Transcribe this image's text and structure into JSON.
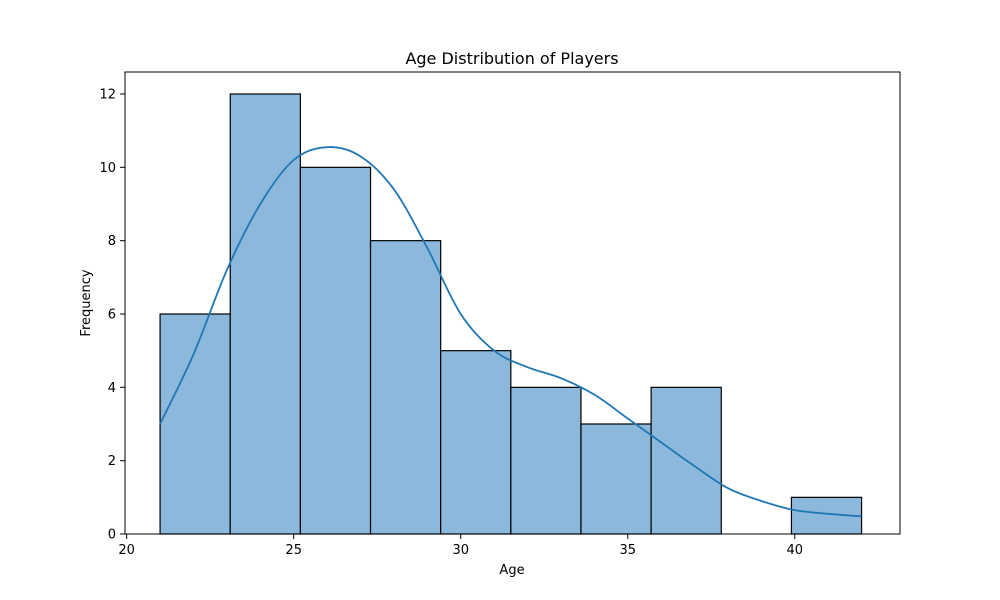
{
  "chart_data": {
    "type": "bar",
    "subtype": "histogram",
    "title": "Age Distribution of Players",
    "xlabel": "Age",
    "ylabel": "Frequency",
    "xlim": [
      19.95,
      43.15
    ],
    "ylim": [
      0,
      12.6
    ],
    "xticks": [
      20,
      25,
      30,
      35,
      40
    ],
    "yticks": [
      0,
      2,
      4,
      6,
      8,
      10,
      12
    ],
    "bins": [
      {
        "start": 21.0,
        "end": 23.1,
        "count": 6
      },
      {
        "start": 23.1,
        "end": 25.2,
        "count": 12
      },
      {
        "start": 25.2,
        "end": 27.3,
        "count": 10
      },
      {
        "start": 27.3,
        "end": 29.4,
        "count": 8
      },
      {
        "start": 29.4,
        "end": 31.5,
        "count": 5
      },
      {
        "start": 31.5,
        "end": 33.6,
        "count": 4
      },
      {
        "start": 33.6,
        "end": 35.7,
        "count": 3
      },
      {
        "start": 35.7,
        "end": 37.8,
        "count": 4
      },
      {
        "start": 37.8,
        "end": 39.9,
        "count": 0
      },
      {
        "start": 39.9,
        "end": 42.0,
        "count": 1
      }
    ],
    "kde": {
      "x": [
        21.0,
        22.0,
        23.0,
        24.0,
        25.0,
        26.0,
        27.0,
        28.0,
        29.0,
        30.0,
        31.0,
        32.0,
        33.0,
        34.0,
        35.0,
        36.0,
        37.0,
        38.0,
        39.0,
        40.0,
        41.0,
        42.0
      ],
      "y": [
        3.0,
        4.9,
        7.2,
        9.0,
        10.2,
        10.55,
        10.3,
        9.4,
        7.8,
        6.0,
        5.0,
        4.55,
        4.25,
        3.8,
        3.15,
        2.5,
        1.85,
        1.25,
        0.9,
        0.65,
        0.55,
        0.48
      ]
    },
    "grid": false,
    "legend": "none",
    "colors": {
      "bar_fill": "#8cb9db",
      "bar_edge": "#000000",
      "kde_line": "#1f77b4",
      "axis": "#000000"
    }
  }
}
